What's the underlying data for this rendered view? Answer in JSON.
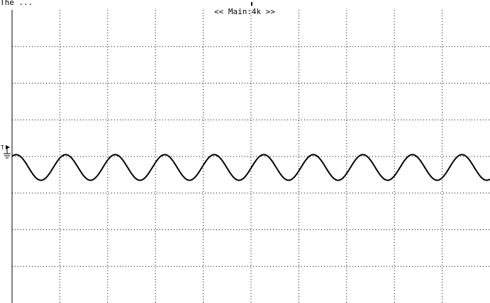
{
  "header": {
    "top_left_text": "The ...",
    "memory_label": "<< Main:4k >>"
  },
  "markers": {
    "trigger_label": "T",
    "ground_icon": "ground-icon"
  },
  "colors": {
    "background": "#ffffff",
    "grid": "#000000",
    "trace": "#000000"
  },
  "chart_data": {
    "type": "line",
    "title": "",
    "xlabel": "",
    "ylabel": "",
    "grid": true,
    "xdiv": 10,
    "ydiv": 8,
    "xlim": [
      0,
      10
    ],
    "ylim": [
      -4,
      4
    ],
    "series": [
      {
        "waveform": "sine",
        "cycles": 9.65,
        "amplitude_div": 0.35,
        "offset_div": -0.3,
        "start_phase_deg": 60
      }
    ]
  }
}
